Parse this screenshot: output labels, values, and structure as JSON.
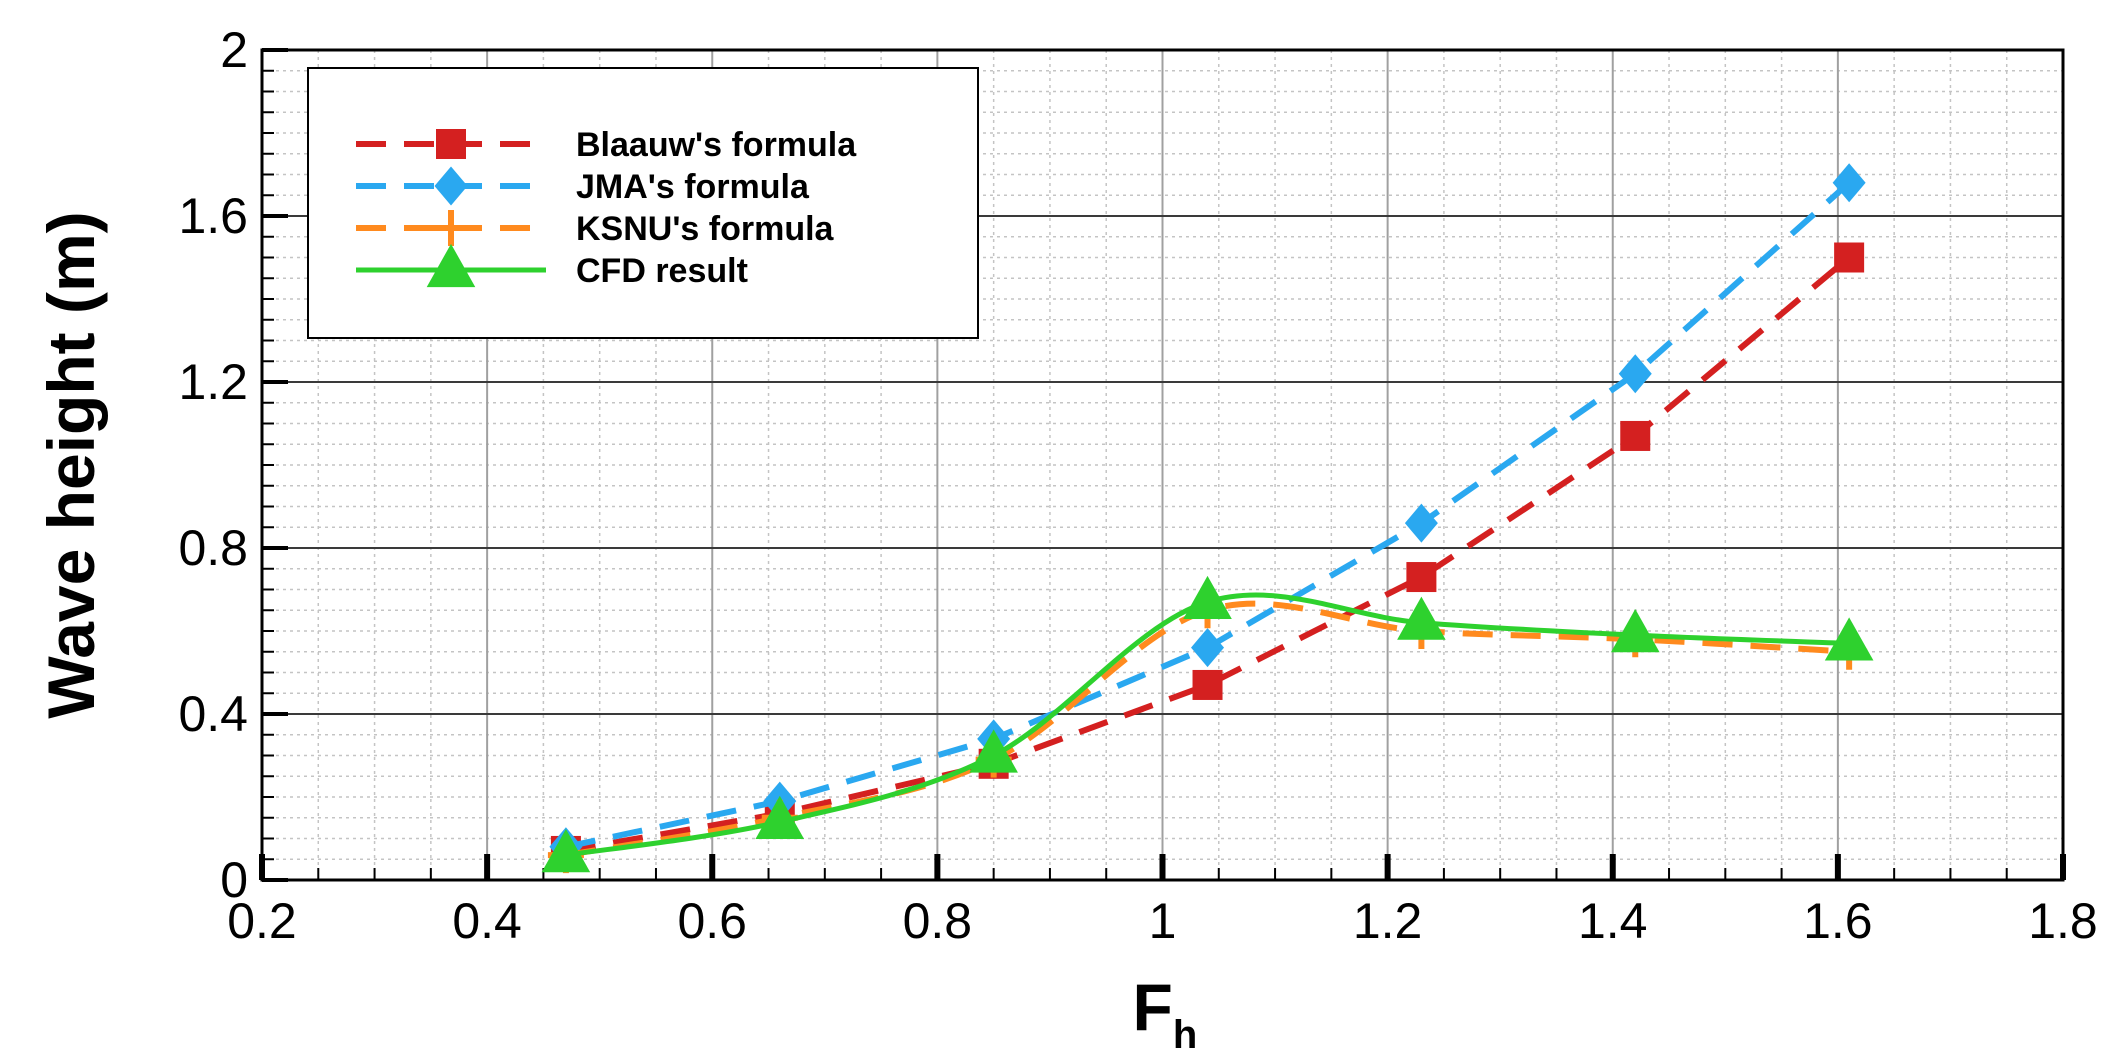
{
  "chart_data": {
    "type": "line",
    "title": "",
    "xlabel": "F",
    "xlabel_subscript": "h",
    "ylabel": "Wave height (m)",
    "xlim": [
      0.2,
      1.8
    ],
    "ylim": [
      0,
      2
    ],
    "x_ticks": [
      "0.2",
      "0.4",
      "0.6",
      "0.8",
      "1",
      "1.2",
      "1.4",
      "1.6",
      "1.8"
    ],
    "y_ticks": [
      "0",
      "0.4",
      "0.8",
      "1.2",
      "1.6",
      "2"
    ],
    "grid": true,
    "legend_position": "top-left",
    "series": [
      {
        "name": "Blaauw's formula",
        "color": "#d42020",
        "line_style": "dashed",
        "marker": "square",
        "x": [
          0.47,
          0.66,
          0.85,
          1.04,
          1.23,
          1.42,
          1.61
        ],
        "y": [
          0.07,
          0.16,
          0.28,
          0.47,
          0.73,
          1.07,
          1.5
        ]
      },
      {
        "name": "JMA's formula",
        "color": "#2aa8f0",
        "line_style": "dashed",
        "marker": "diamond",
        "x": [
          0.47,
          0.66,
          0.85,
          1.04,
          1.23,
          1.42,
          1.61
        ],
        "y": [
          0.08,
          0.19,
          0.34,
          0.56,
          0.86,
          1.22,
          1.68
        ]
      },
      {
        "name": "KSNU's formula",
        "color": "#ff8a1e",
        "line_style": "dashed",
        "marker": "plus",
        "x": [
          0.47,
          0.66,
          0.85,
          1.04,
          1.23,
          1.42,
          1.61
        ],
        "y": [
          0.06,
          0.15,
          0.29,
          0.65,
          0.6,
          0.58,
          0.55
        ]
      },
      {
        "name": "CFD result",
        "color": "#2ed12e",
        "line_style": "solid",
        "marker": "triangle",
        "x": [
          0.47,
          0.66,
          0.85,
          1.04,
          1.23,
          1.42,
          1.61
        ],
        "y": [
          0.06,
          0.14,
          0.3,
          0.67,
          0.62,
          0.59,
          0.57
        ]
      }
    ]
  }
}
